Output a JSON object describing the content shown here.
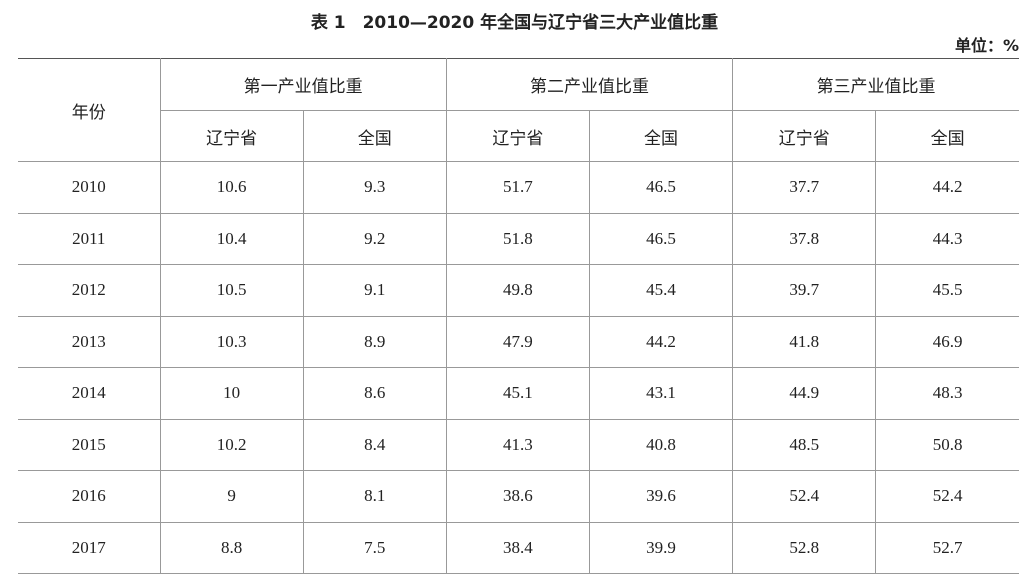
{
  "title": "表 1　2010—2020 年全国与辽宁省三大产业值比重",
  "unit": "单位：%",
  "table": {
    "header": {
      "year": "年份",
      "groups": [
        "第一产业值比重",
        "第二产业值比重",
        "第三产业值比重"
      ],
      "subheaders": [
        "辽宁省",
        "全国",
        "辽宁省",
        "全国",
        "辽宁省",
        "全国"
      ]
    },
    "rows": [
      [
        "2010",
        10.6,
        9.3,
        51.7,
        46.5,
        37.7,
        44.2
      ],
      [
        "2011",
        10.4,
        9.2,
        51.8,
        46.5,
        37.8,
        44.3
      ],
      [
        "2012",
        10.5,
        9.1,
        49.8,
        45.4,
        39.7,
        45.5
      ],
      [
        "2013",
        10.3,
        8.9,
        47.9,
        44.2,
        41.8,
        46.9
      ],
      [
        "2014",
        10,
        8.6,
        45.1,
        43.1,
        44.9,
        48.3
      ],
      [
        "2015",
        10.2,
        8.4,
        41.3,
        40.8,
        48.5,
        50.8
      ],
      [
        "2016",
        9,
        8.1,
        38.6,
        39.6,
        52.4,
        52.4
      ],
      [
        "2017",
        8.8,
        7.5,
        38.4,
        39.9,
        52.8,
        52.7
      ]
    ]
  }
}
